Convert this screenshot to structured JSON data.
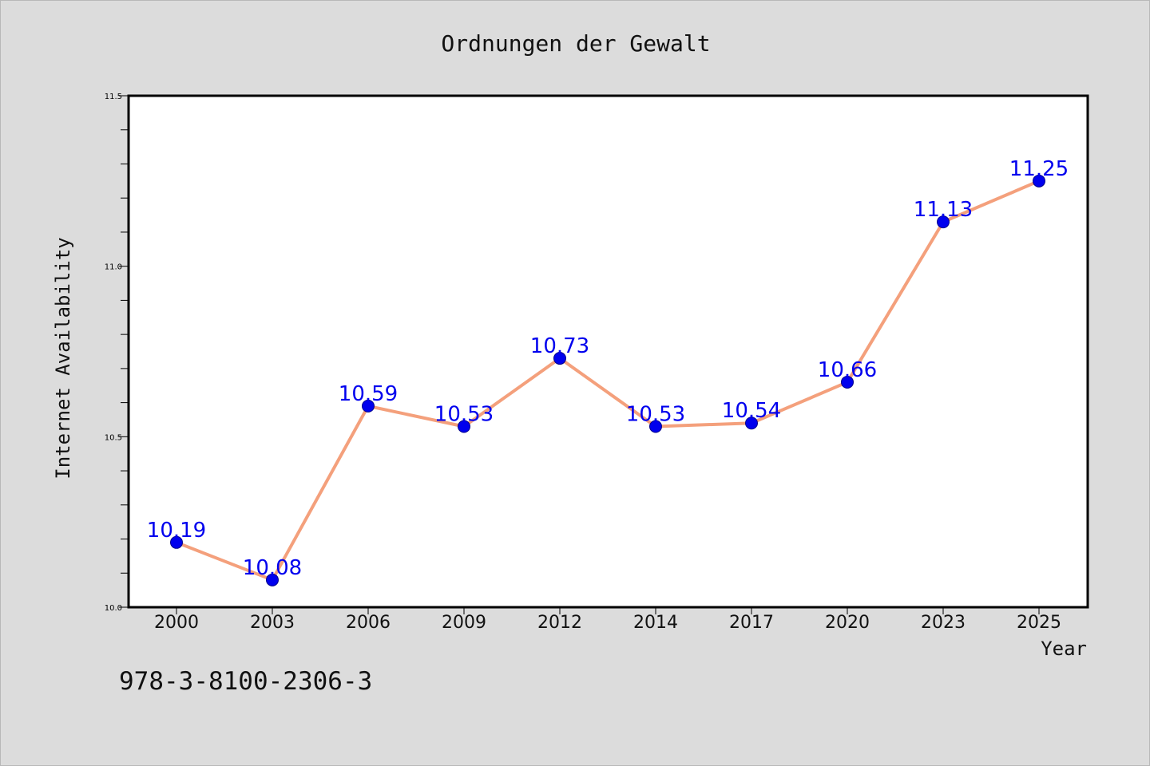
{
  "chart_data": {
    "type": "line",
    "title": "Ordnungen der Gewalt",
    "xlabel": "Year",
    "ylabel": "Internet Availability",
    "categories": [
      "2000",
      "2003",
      "2006",
      "2009",
      "2012",
      "2014",
      "2017",
      "2020",
      "2023",
      "2025"
    ],
    "series": [
      {
        "values": [
          10.19,
          10.08,
          10.59,
          10.53,
          10.73,
          10.53,
          10.54,
          10.66,
          11.13,
          11.25
        ],
        "labels": [
          "10.19",
          "10.08",
          "10.59",
          "10.53",
          "10.73",
          "10.53",
          "10.54",
          "10.66",
          "11.13",
          "11.25"
        ],
        "line_color": "#f4a07c",
        "marker_color": "#0000ee",
        "label_color": "#0000ee"
      }
    ],
    "ylim": [
      10.0,
      11.5
    ],
    "yticks": [
      "10.0",
      "10.5",
      "11.0",
      "11.5"
    ],
    "grid": false,
    "legend": "none"
  },
  "footer_code": "978-3-8100-2306-3",
  "colors": {
    "background": "#dcdcdc",
    "plot_background": "#ffffff",
    "axis": "#000000"
  }
}
